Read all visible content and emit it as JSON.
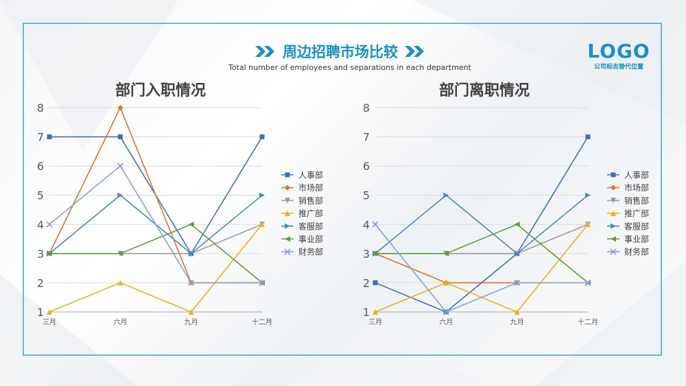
{
  "header": {
    "title": "周边招聘市场比较",
    "subtitle": "Total number of employees and separations in each department"
  },
  "logo": {
    "main": "LOGO",
    "sub": "公司标志替代位置"
  },
  "colors": {
    "accent": "#1b8fc2",
    "frame": "#6cb6c9",
    "series": [
      "#3f6eb5",
      "#d9732b",
      "#9b9b9b",
      "#e9b311",
      "#4a88c0",
      "#5c9e34",
      "#8a9fd6"
    ]
  },
  "chart_data": [
    {
      "type": "line",
      "title": "部门入职情况",
      "categories": [
        "三月",
        "六月",
        "九月",
        "十二月"
      ],
      "ylim": [
        1,
        8
      ],
      "yticks": [
        1,
        2,
        3,
        4,
        5,
        6,
        7,
        8
      ],
      "grid": true,
      "legend": "right",
      "series": [
        {
          "name": "人事部",
          "values": [
            7,
            7,
            3,
            7
          ],
          "marker": "square"
        },
        {
          "name": "市场部",
          "values": [
            3,
            8,
            2,
            2
          ],
          "marker": "diamond"
        },
        {
          "name": "销售部",
          "values": [
            3,
            3,
            3,
            4
          ],
          "marker": "triangle-down"
        },
        {
          "name": "推广部",
          "values": [
            1,
            2,
            1,
            4
          ],
          "marker": "triangle-up"
        },
        {
          "name": "客服部",
          "values": [
            3,
            5,
            3,
            5
          ],
          "marker": "triangle-right"
        },
        {
          "name": "事业部",
          "values": [
            3,
            3,
            4,
            2
          ],
          "marker": "triangle-left"
        },
        {
          "name": "财务部",
          "values": [
            4,
            6,
            2,
            2
          ],
          "marker": "x"
        }
      ]
    },
    {
      "type": "line",
      "title": "部门离职情况",
      "categories": [
        "三月",
        "六月",
        "九月",
        "十二月"
      ],
      "ylim": [
        1,
        8
      ],
      "yticks": [
        1,
        2,
        3,
        4,
        5,
        6,
        7,
        8
      ],
      "grid": true,
      "legend": "right",
      "series": [
        {
          "name": "人事部",
          "values": [
            2,
            1,
            3,
            7
          ],
          "marker": "square"
        },
        {
          "name": "市场部",
          "values": [
            3,
            2,
            2,
            null
          ],
          "marker": "diamond"
        },
        {
          "name": "销售部",
          "values": [
            3,
            3,
            3,
            4
          ],
          "marker": "triangle-down"
        },
        {
          "name": "推广部",
          "values": [
            1,
            2,
            1,
            4
          ],
          "marker": "triangle-up"
        },
        {
          "name": "客服部",
          "values": [
            3,
            5,
            3,
            5
          ],
          "marker": "triangle-right"
        },
        {
          "name": "事业部",
          "values": [
            3,
            3,
            4,
            2
          ],
          "marker": "triangle-left"
        },
        {
          "name": "财务部",
          "values": [
            4,
            1,
            2,
            2
          ],
          "marker": "x"
        }
      ]
    }
  ]
}
